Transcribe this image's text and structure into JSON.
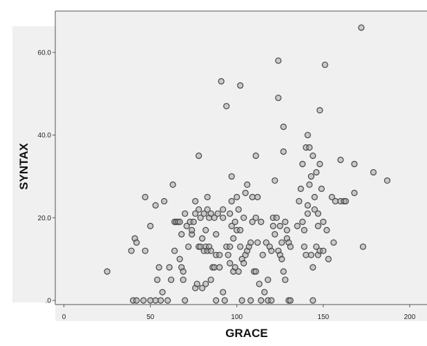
{
  "chart_data": {
    "type": "scatter",
    "title": "",
    "xlabel": "GRACE",
    "ylabel": "SYNTAX",
    "xlim": [
      -5,
      210
    ],
    "ylim": [
      -1,
      70
    ],
    "x_ticks": [
      0,
      50,
      100,
      150,
      200
    ],
    "x_tick_labels": [
      "0",
      "50",
      "100",
      "150",
      "200"
    ],
    "y_ticks": [
      0,
      20,
      40,
      60
    ],
    "y_tick_labels": [
      ".0",
      "20.0",
      "40.0",
      "60.0"
    ],
    "grid": false,
    "legend": "none",
    "colors": {
      "background": "#f0f0f0",
      "marker_fill": "#aaaaaa",
      "marker_stroke": "#444444"
    },
    "series": [
      {
        "points": [
          [
            25,
            7
          ],
          [
            39,
            12
          ],
          [
            40,
            0
          ],
          [
            41,
            15
          ],
          [
            42,
            14
          ],
          [
            42,
            0
          ],
          [
            46,
            0
          ],
          [
            47,
            12
          ],
          [
            47,
            25
          ],
          [
            50,
            18
          ],
          [
            50,
            0
          ],
          [
            53,
            0
          ],
          [
            53,
            23
          ],
          [
            54,
            5
          ],
          [
            55,
            8
          ],
          [
            56,
            0
          ],
          [
            57,
            2
          ],
          [
            58,
            24
          ],
          [
            60,
            0
          ],
          [
            61,
            8
          ],
          [
            62,
            5
          ],
          [
            63,
            28
          ],
          [
            64,
            12
          ],
          [
            64,
            19
          ],
          [
            65,
            19
          ],
          [
            66,
            19
          ],
          [
            67,
            19
          ],
          [
            67,
            10
          ],
          [
            68,
            16
          ],
          [
            68,
            8
          ],
          [
            69,
            5
          ],
          [
            69,
            7
          ],
          [
            70,
            21
          ],
          [
            70,
            0
          ],
          [
            71,
            18
          ],
          [
            72,
            13
          ],
          [
            73,
            19
          ],
          [
            74,
            16
          ],
          [
            74,
            17
          ],
          [
            75,
            19
          ],
          [
            76,
            24
          ],
          [
            76,
            21
          ],
          [
            76,
            3
          ],
          [
            77,
            4
          ],
          [
            78,
            13
          ],
          [
            78,
            22
          ],
          [
            78,
            35
          ],
          [
            79,
            20
          ],
          [
            79,
            13
          ],
          [
            80,
            15
          ],
          [
            80,
            3
          ],
          [
            81,
            12
          ],
          [
            81,
            21
          ],
          [
            82,
            17
          ],
          [
            82,
            13
          ],
          [
            82,
            4
          ],
          [
            83,
            12
          ],
          [
            83,
            25
          ],
          [
            83,
            22
          ],
          [
            84,
            20
          ],
          [
            84,
            13
          ],
          [
            85,
            21
          ],
          [
            85,
            12
          ],
          [
            85,
            5
          ],
          [
            86,
            8
          ],
          [
            87,
            8
          ],
          [
            87,
            20
          ],
          [
            88,
            11
          ],
          [
            88,
            16
          ],
          [
            88,
            0
          ],
          [
            89,
            21
          ],
          [
            90,
            8
          ],
          [
            90,
            11
          ],
          [
            91,
            53
          ],
          [
            92,
            22
          ],
          [
            92,
            20
          ],
          [
            92,
            2
          ],
          [
            93,
            0
          ],
          [
            94,
            47
          ],
          [
            94,
            13
          ],
          [
            95,
            11
          ],
          [
            96,
            21
          ],
          [
            96,
            13
          ],
          [
            96,
            9
          ],
          [
            97,
            30
          ],
          [
            97,
            24
          ],
          [
            97,
            18
          ],
          [
            98,
            7
          ],
          [
            98,
            15
          ],
          [
            99,
            8
          ],
          [
            99,
            19
          ],
          [
            100,
            17
          ],
          [
            100,
            25
          ],
          [
            101,
            7
          ],
          [
            101,
            22
          ],
          [
            102,
            52
          ],
          [
            102,
            17
          ],
          [
            102,
            13
          ],
          [
            103,
            10
          ],
          [
            103,
            0
          ],
          [
            104,
            9
          ],
          [
            104,
            20
          ],
          [
            105,
            11
          ],
          [
            105,
            26
          ],
          [
            106,
            12
          ],
          [
            106,
            28
          ],
          [
            107,
            13
          ],
          [
            108,
            14
          ],
          [
            108,
            0
          ],
          [
            109,
            19
          ],
          [
            109,
            25
          ],
          [
            110,
            7
          ],
          [
            111,
            7
          ],
          [
            111,
            20
          ],
          [
            111,
            35
          ],
          [
            112,
            14
          ],
          [
            112,
            25
          ],
          [
            113,
            4
          ],
          [
            114,
            19
          ],
          [
            114,
            0
          ],
          [
            115,
            11
          ],
          [
            116,
            2
          ],
          [
            117,
            14
          ],
          [
            118,
            5
          ],
          [
            118,
            0
          ],
          [
            119,
            13
          ],
          [
            120,
            0
          ],
          [
            120,
            12
          ],
          [
            121,
            18
          ],
          [
            121,
            20
          ],
          [
            122,
            16
          ],
          [
            122,
            29
          ],
          [
            123,
            20
          ],
          [
            124,
            58
          ],
          [
            124,
            49
          ],
          [
            124,
            12
          ],
          [
            125,
            18
          ],
          [
            125,
            11
          ],
          [
            126,
            14
          ],
          [
            126,
            10
          ],
          [
            127,
            42
          ],
          [
            127,
            36
          ],
          [
            127,
            7
          ],
          [
            128,
            19
          ],
          [
            128,
            5
          ],
          [
            129,
            17
          ],
          [
            129,
            15
          ],
          [
            130,
            14
          ],
          [
            130,
            0
          ],
          [
            131,
            13
          ],
          [
            131,
            0
          ],
          [
            135,
            18
          ],
          [
            136,
            24
          ],
          [
            137,
            27
          ],
          [
            138,
            19
          ],
          [
            138,
            33
          ],
          [
            139,
            13
          ],
          [
            139,
            17
          ],
          [
            140,
            37
          ],
          [
            140,
            11
          ],
          [
            141,
            40
          ],
          [
            141,
            21
          ],
          [
            141,
            23
          ],
          [
            142,
            28
          ],
          [
            142,
            37
          ],
          [
            143,
            11
          ],
          [
            143,
            30
          ],
          [
            144,
            8
          ],
          [
            144,
            35
          ],
          [
            144,
            0
          ],
          [
            145,
            25
          ],
          [
            145,
            22
          ],
          [
            146,
            13
          ],
          [
            146,
            31
          ],
          [
            147,
            18
          ],
          [
            147,
            11
          ],
          [
            147,
            21
          ],
          [
            148,
            46
          ],
          [
            148,
            33
          ],
          [
            148,
            12
          ],
          [
            149,
            27
          ],
          [
            150,
            12
          ],
          [
            150,
            19
          ],
          [
            151,
            57
          ],
          [
            152,
            17
          ],
          [
            153,
            10
          ],
          [
            155,
            25
          ],
          [
            156,
            14
          ],
          [
            157,
            24
          ],
          [
            160,
            34
          ],
          [
            160,
            24
          ],
          [
            162,
            24
          ],
          [
            163,
            24
          ],
          [
            168,
            33
          ],
          [
            168,
            26
          ],
          [
            172,
            66
          ],
          [
            173,
            13
          ],
          [
            179,
            31
          ],
          [
            187,
            29
          ]
        ]
      }
    ]
  }
}
